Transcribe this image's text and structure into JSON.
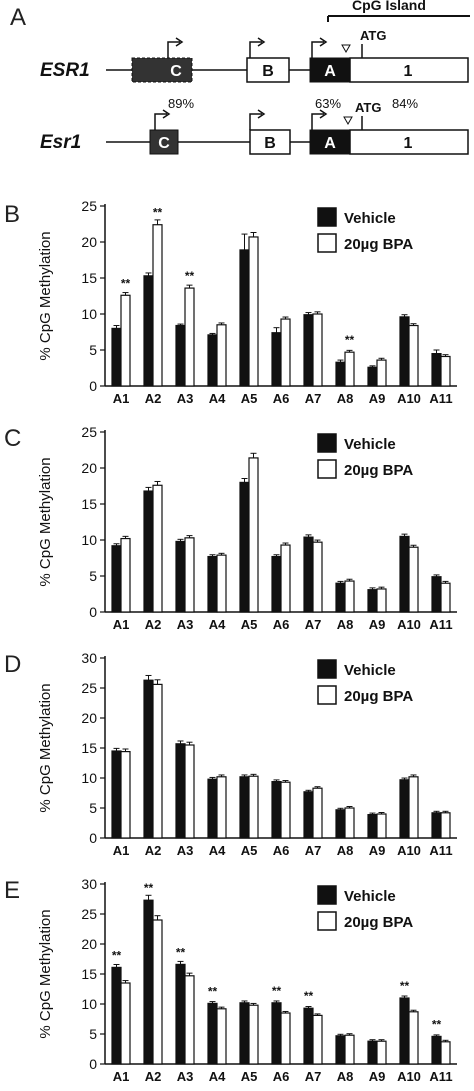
{
  "diagram": {
    "panel_letter": "A",
    "cpg_island_label": "CpG Island",
    "genes": [
      {
        "name": "ESR1",
        "exons": [
          "C",
          "B",
          "A",
          "1"
        ],
        "atg": "ATG"
      },
      {
        "name": "Esr1",
        "exons": [
          "C",
          "B",
          "A",
          "1"
        ],
        "atg": "ATG",
        "percentages": [
          "89%",
          "63%",
          "84%"
        ]
      }
    ]
  },
  "chart_data": [
    {
      "panel": "B",
      "type": "bar",
      "ylabel": "% CpG Methylation",
      "ylim": [
        0,
        25
      ],
      "yticks": [
        0,
        5,
        10,
        15,
        20,
        25
      ],
      "categories": [
        "A1",
        "A2",
        "A3",
        "A4",
        "A5",
        "A6",
        "A7",
        "A8",
        "A9",
        "A10",
        "A11"
      ],
      "series": [
        {
          "name": "Vehicle",
          "color": "#111111",
          "values": [
            8.0,
            15.3,
            8.4,
            7.1,
            18.9,
            7.4,
            9.9,
            3.3,
            2.6,
            9.6,
            4.5
          ],
          "errors": [
            0.4,
            0.4,
            0.2,
            0.2,
            2.2,
            0.7,
            0.3,
            0.3,
            0.2,
            0.3,
            0.5
          ]
        },
        {
          "name": "20µg BPA",
          "color": "#ffffff",
          "values": [
            12.6,
            22.4,
            13.6,
            8.5,
            20.7,
            9.3,
            10.0,
            4.7,
            3.6,
            8.4,
            4.1
          ]
        }
      ],
      "significance": [
        "**",
        "**",
        "**",
        "",
        "",
        "",
        "",
        "**",
        "",
        "",
        ""
      ],
      "significance_on": [
        "20µg BPA",
        "20µg BPA",
        "20µg BPA",
        "",
        "",
        "",
        "",
        "20µg BPA",
        "",
        "",
        ""
      ],
      "legend_position": "top-right"
    },
    {
      "panel": "C",
      "type": "bar",
      "ylabel": "% CpG Methylation",
      "ylim": [
        0,
        25
      ],
      "yticks": [
        0,
        5,
        10,
        15,
        20,
        25
      ],
      "categories": [
        "A1",
        "A2",
        "A3",
        "A4",
        "A5",
        "A6",
        "A7",
        "A8",
        "A9",
        "A10",
        "A11"
      ],
      "series": [
        {
          "name": "Vehicle",
          "color": "#111111",
          "values": [
            9.2,
            16.8,
            9.8,
            7.7,
            18.0,
            7.7,
            10.4,
            4.0,
            3.1,
            10.5,
            4.9
          ]
        },
        {
          "name": "20µg BPA",
          "color": "#ffffff",
          "values": [
            10.2,
            17.6,
            10.3,
            7.9,
            21.4,
            9.3,
            9.7,
            4.3,
            3.2,
            9.0,
            4.0
          ]
        }
      ],
      "significance": [
        "",
        "",
        "",
        "",
        "",
        "",
        "",
        "",
        "",
        "",
        ""
      ],
      "significance_on": [
        "",
        "",
        "",
        "",
        "",
        "",
        "",
        "",
        "",
        "",
        ""
      ],
      "legend_position": "top-right"
    },
    {
      "panel": "D",
      "type": "bar",
      "ylabel": "% CpG Methylation",
      "ylim": [
        0,
        30
      ],
      "yticks": [
        0,
        5,
        10,
        15,
        20,
        25,
        30
      ],
      "categories": [
        "A1",
        "A2",
        "A3",
        "A4",
        "A5",
        "A6",
        "A7",
        "A8",
        "A9",
        "A10",
        "A11"
      ],
      "series": [
        {
          "name": "Vehicle",
          "color": "#111111",
          "values": [
            14.5,
            26.3,
            15.7,
            9.8,
            10.2,
            9.4,
            7.7,
            4.7,
            3.9,
            9.7,
            4.2
          ]
        },
        {
          "name": "20µg BPA",
          "color": "#ffffff",
          "values": [
            14.4,
            25.6,
            15.5,
            10.2,
            10.3,
            9.3,
            8.3,
            5.0,
            4.0,
            10.2,
            4.2
          ]
        }
      ],
      "significance": [
        "",
        "",
        "",
        "",
        "",
        "",
        "",
        "",
        "",
        "",
        ""
      ],
      "significance_on": [
        "",
        "",
        "",
        "",
        "",
        "",
        "",
        "",
        "",
        "",
        ""
      ],
      "legend_position": "top-right"
    },
    {
      "panel": "E",
      "type": "bar",
      "ylabel": "% CpG Methylation",
      "ylim": [
        0,
        30
      ],
      "yticks": [
        0,
        5,
        10,
        15,
        20,
        25,
        30
      ],
      "categories": [
        "A1",
        "A2",
        "A3",
        "A4",
        "A5",
        "A6",
        "A7",
        "A8",
        "A9",
        "A10",
        "A11"
      ],
      "series": [
        {
          "name": "Vehicle",
          "color": "#111111",
          "values": [
            16.1,
            27.3,
            16.6,
            10.1,
            10.2,
            10.2,
            9.3,
            4.7,
            3.8,
            11.0,
            4.6
          ]
        },
        {
          "name": "20µg BPA",
          "color": "#ffffff",
          "values": [
            13.5,
            24.0,
            14.7,
            9.2,
            9.8,
            8.5,
            8.1,
            4.8,
            3.8,
            8.7,
            3.7
          ]
        }
      ],
      "significance": [
        "**",
        "**",
        "**",
        "**",
        "",
        "**",
        "**",
        "",
        "",
        "**",
        "**"
      ],
      "significance_on": [
        "Vehicle",
        "Vehicle",
        "Vehicle",
        "Vehicle",
        "",
        "Vehicle",
        "Vehicle",
        "",
        "",
        "Vehicle",
        "Vehicle"
      ],
      "legend_position": "top-right"
    }
  ]
}
